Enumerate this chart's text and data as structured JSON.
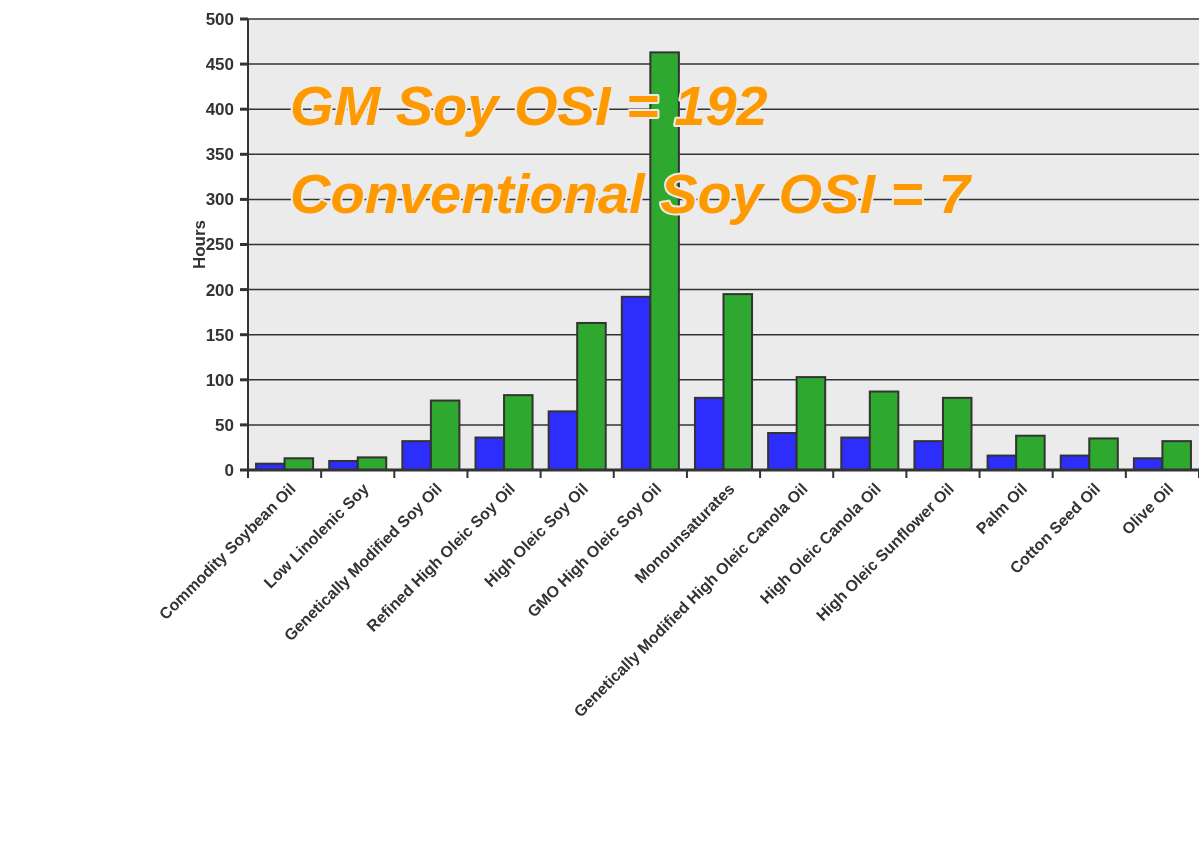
{
  "chart_data": {
    "type": "bar",
    "ylabel": "Hours",
    "categories": [
      "Commodity Soybean Oil",
      "Low Linolenic Soy",
      "Genetically Modified Soy Oil",
      "Refined High Oleic Soy Oil",
      "High Oleic Soy Oil",
      "GMO High Oleic Soy Oil",
      "Monounsaturates",
      "Genetically Modified High Oleic Canola Oil",
      "High Oleic Canola Oil",
      "High Oleic Sunflower Oil",
      "Palm Oil",
      "Cotton Seed Oil",
      "Olive Oil"
    ],
    "series": [
      {
        "color": "#2e2efc",
        "values": [
          7,
          10,
          32,
          36,
          65,
          192,
          80,
          41,
          36,
          32,
          16,
          16,
          13
        ]
      },
      {
        "color": "#2ea82e",
        "values": [
          13,
          14,
          77,
          83,
          163,
          463,
          195,
          103,
          87,
          80,
          38,
          35,
          32
        ]
      }
    ],
    "ylim": [
      0,
      500
    ],
    "yticks": [
      0,
      50,
      100,
      150,
      200,
      250,
      300,
      350,
      400,
      450,
      500
    ],
    "grid": "y",
    "annotations": [
      "GM Soy OSI = 192",
      "Conventional Soy OSI = 7"
    ]
  }
}
